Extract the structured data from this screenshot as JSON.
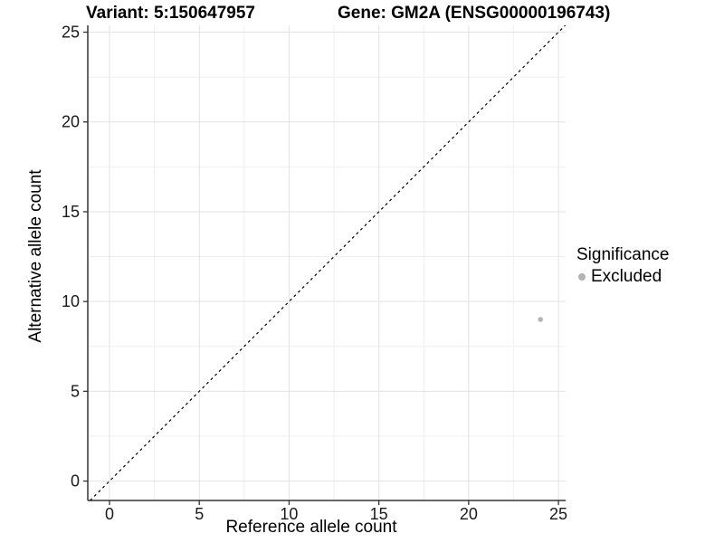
{
  "colors": {
    "axis_line": "#333333",
    "tick_text": "#1a1a1a",
    "grid_major": "#e2e2e2",
    "grid_minor": "#efefef",
    "point": "#b3b3b3",
    "identity_line": "#000000"
  },
  "chart_data": {
    "type": "scatter",
    "titles": {
      "left": "Variant: 5:150647957",
      "right": "Gene: GM2A (ENSG00000196743)"
    },
    "xlabel": "Reference allele count",
    "ylabel": "Alternative allele count",
    "xlim": [
      -1.21,
      25.4
    ],
    "ylim": [
      -1.08,
      25.38
    ],
    "xticks": [
      0,
      5,
      10,
      15,
      20,
      25
    ],
    "yticks": [
      0,
      5,
      10,
      15,
      20,
      25
    ],
    "minor_xticks": [
      2.5,
      7.5,
      12.5,
      17.5,
      22.5
    ],
    "minor_yticks": [
      2.5,
      7.5,
      12.5,
      17.5,
      22.5
    ],
    "grid": true,
    "identity_line": {
      "slope": 1,
      "intercept": 0,
      "style": "dashed"
    },
    "series": [
      {
        "name": "Excluded",
        "color": "#b3b3b3",
        "point_radius": 2.8,
        "points": [
          {
            "x": 24,
            "y": 9
          }
        ]
      }
    ],
    "legend": {
      "title": "Significance",
      "position": "right",
      "items": [
        {
          "label": "Excluded",
          "color": "#b3b3b3"
        }
      ]
    }
  }
}
